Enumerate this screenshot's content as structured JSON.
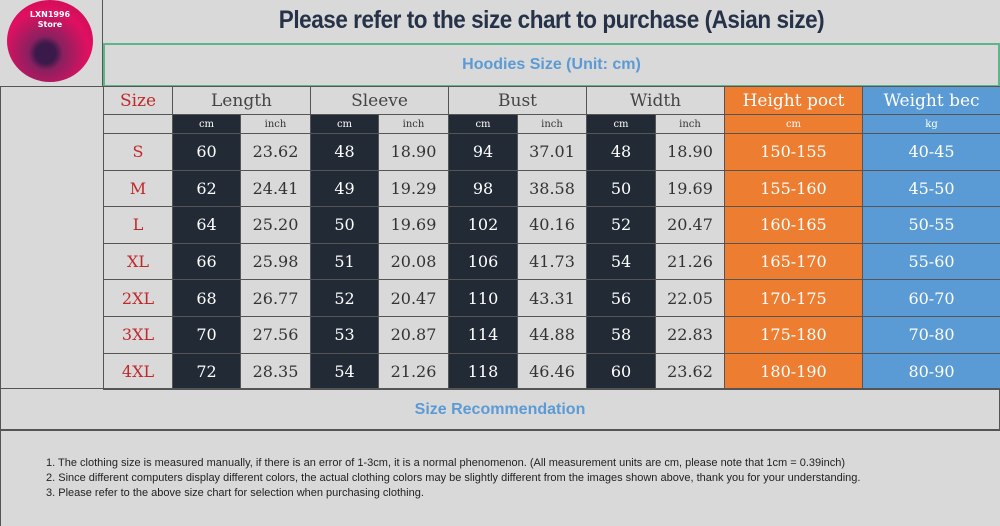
{
  "logo": {
    "line1": "LXN1996",
    "line2": "Store"
  },
  "title": "Please refer to the size chart to purchase    (Asian size)",
  "subtitle": "Hoodies Size (Unit: cm)",
  "headers": [
    "Size",
    "Length",
    "Sleeve",
    "Bust",
    "Width",
    "Height poct",
    "Weight bec"
  ],
  "units": {
    "cm": "cm",
    "inch": "inch",
    "kg": "kg"
  },
  "rows": [
    [
      "S",
      "60",
      "23.62",
      "48",
      "18.90",
      "94",
      "37.01",
      "48",
      "18.90",
      "150-155",
      "40-45"
    ],
    [
      "M",
      "62",
      "24.41",
      "49",
      "19.29",
      "98",
      "38.58",
      "50",
      "19.69",
      "155-160",
      "45-50"
    ],
    [
      "L",
      "64",
      "25.20",
      "50",
      "19.69",
      "102",
      "40.16",
      "52",
      "20.47",
      "160-165",
      "50-55"
    ],
    [
      "XL",
      "66",
      "25.98",
      "51",
      "20.08",
      "106",
      "41.73",
      "54",
      "21.26",
      "165-170",
      "55-60"
    ],
    [
      "2XL",
      "68",
      "26.77",
      "52",
      "20.47",
      "110",
      "43.31",
      "56",
      "22.05",
      "170-175",
      "60-70"
    ],
    [
      "3XL",
      "70",
      "27.56",
      "53",
      "20.87",
      "114",
      "44.88",
      "58",
      "22.83",
      "175-180",
      "70-80"
    ],
    [
      "4XL",
      "72",
      "28.35",
      "54",
      "21.26",
      "118",
      "46.46",
      "60",
      "23.62",
      "180-190",
      "80-90"
    ]
  ],
  "recommendation": "Size Recommendation",
  "notes": [
    "1. The clothing size is measured manually, if there is an error of 1-3cm, it is a normal phenomenon. (All measurement units are cm, please note that 1cm = 0.39inch)",
    "2. Since different computers display different colors, the actual clothing colors may be slightly different from the images shown above, thank you for your understanding.",
    "3. Please refer to the above size chart for selection when purchasing clothing."
  ]
}
